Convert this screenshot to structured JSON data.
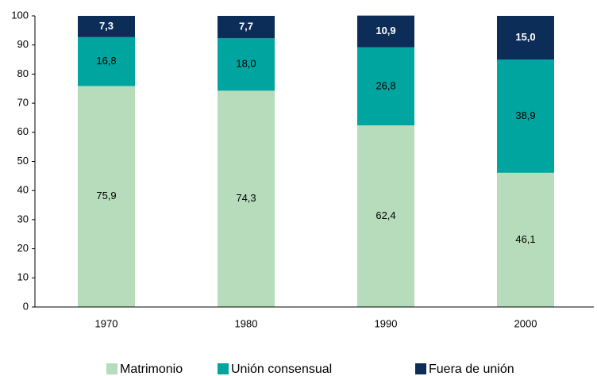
{
  "chart_data": {
    "type": "stacked_bar",
    "categories": [
      "1970",
      "1980",
      "1990",
      "2000"
    ],
    "series": [
      {
        "name": "Matrimonio",
        "color": "#b6dcbb",
        "values": [
          75.9,
          74.3,
          62.4,
          46.1
        ],
        "value_labels": [
          "75,9",
          "74,3",
          "62,4",
          "46,1"
        ]
      },
      {
        "name": "Unión consensual",
        "color": "#00a59f",
        "values": [
          16.8,
          18.0,
          26.8,
          38.9
        ],
        "value_labels": [
          "16,8",
          "18,0",
          "26,8",
          "38,9"
        ]
      },
      {
        "name": "Fuera de unión",
        "color": "#0c2d57",
        "values": [
          7.3,
          7.7,
          10.9,
          15.0
        ],
        "value_labels": [
          "7,3",
          "7,7",
          "10,9",
          "15,0"
        ]
      }
    ],
    "ylim": [
      0,
      100
    ],
    "yticks": [
      0,
      10,
      20,
      30,
      40,
      50,
      60,
      70,
      80,
      90,
      100
    ],
    "legend": "bottom"
  }
}
